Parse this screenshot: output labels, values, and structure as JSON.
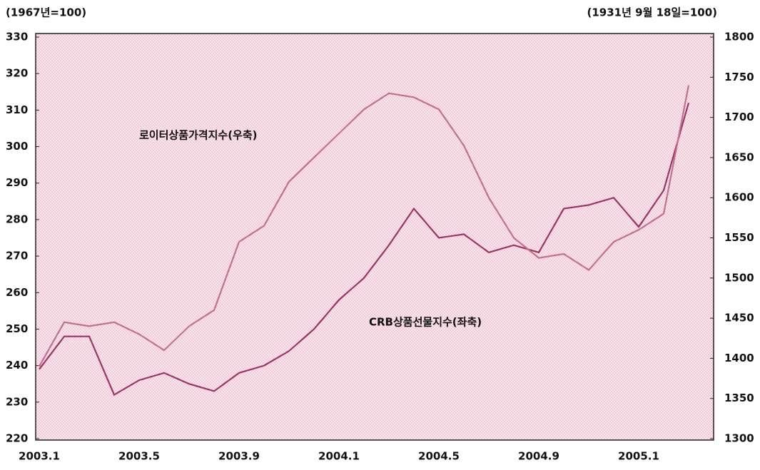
{
  "chart_data": {
    "type": "line",
    "left_unit": "(1967년=100)",
    "right_unit": "(1931년 9월 18일=100)",
    "categories": [
      "2003.1",
      null,
      null,
      null,
      "2003.5",
      null,
      null,
      null,
      "2003.9",
      null,
      null,
      null,
      "2004.1",
      null,
      null,
      null,
      "2004.5",
      null,
      null,
      null,
      "2004.9",
      null,
      null,
      null,
      "2005.1",
      null,
      null
    ],
    "series": [
      {
        "name": "CRB상품선물지수(좌축)",
        "color": "#9a3468",
        "axis": "y",
        "values": [
          239,
          248,
          248,
          232,
          236,
          238,
          235,
          233,
          238,
          240,
          244,
          250,
          258,
          264,
          273,
          283,
          275,
          276,
          271,
          273,
          271,
          283,
          284,
          286,
          278,
          288,
          312
        ]
      },
      {
        "name": "로이터상품가격지수(우축)",
        "color": "#c27090",
        "axis": "y2",
        "values": [
          1390,
          1445,
          1440,
          1445,
          1430,
          1410,
          1440,
          1460,
          1545,
          1565,
          1620,
          1650,
          1680,
          1710,
          1730,
          1725,
          1710,
          1665,
          1600,
          1550,
          1525,
          1530,
          1510,
          1545,
          1560,
          1580,
          1740
        ]
      }
    ],
    "ylim": [
      220,
      330
    ],
    "yticks": [
      220,
      230,
      240,
      250,
      260,
      270,
      280,
      290,
      300,
      310,
      320,
      330
    ],
    "y2lim": [
      1300,
      1800
    ],
    "y2ticks": [
      1300,
      1350,
      1400,
      1450,
      1500,
      1550,
      1600,
      1650,
      1700,
      1750,
      1800
    ]
  }
}
